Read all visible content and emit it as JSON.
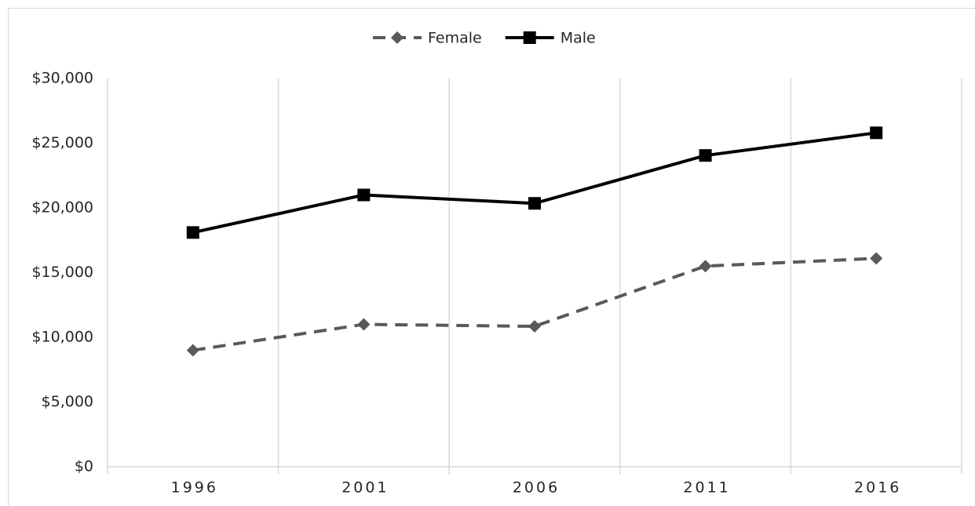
{
  "chart_data": {
    "type": "line",
    "categories": [
      "1996",
      "2001",
      "2006",
      "2011",
      "2016"
    ],
    "series": [
      {
        "name": "Female",
        "color": "#595959",
        "dash": true,
        "marker": "diamond",
        "values": [
          9000,
          11000,
          10850,
          15500,
          16100
        ]
      },
      {
        "name": "Male",
        "color": "#000000",
        "dash": false,
        "marker": "square",
        "values": [
          18100,
          21000,
          20350,
          24050,
          25800
        ]
      }
    ],
    "ylim": [
      0,
      30000
    ],
    "yticks": [
      {
        "value": 0,
        "label": "$0"
      },
      {
        "value": 5000,
        "label": "$5,000"
      },
      {
        "value": 10000,
        "label": "$10,000"
      },
      {
        "value": 15000,
        "label": "$15,000"
      },
      {
        "value": 20000,
        "label": "$20,000"
      },
      {
        "value": 25000,
        "label": "$25,000"
      },
      {
        "value": 30000,
        "label": "$30,000"
      }
    ],
    "legend": "top"
  }
}
